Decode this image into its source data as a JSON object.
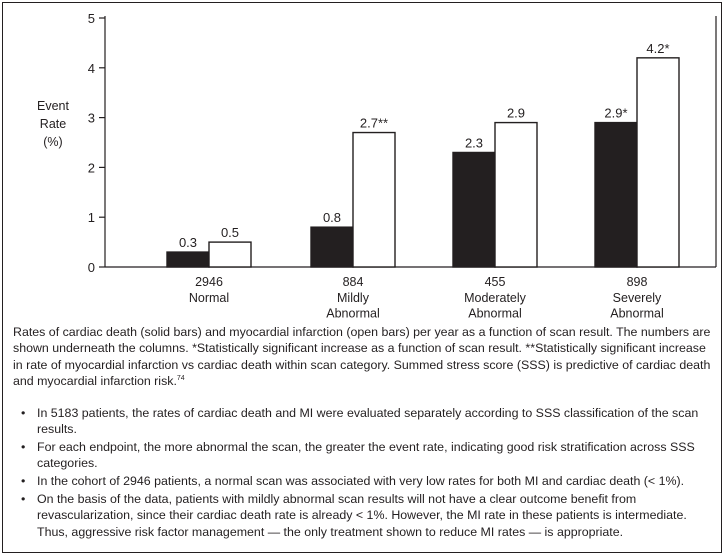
{
  "chart_data": {
    "type": "bar",
    "ylabel_lines": [
      "Event",
      "Rate",
      "(%)"
    ],
    "ylim": [
      0,
      5
    ],
    "yticks": [
      0,
      1,
      2,
      3,
      4,
      5
    ],
    "categories": [
      {
        "count": "2946",
        "lines": [
          "Normal"
        ]
      },
      {
        "count": "884",
        "lines": [
          "Mildly",
          "Abnormal"
        ]
      },
      {
        "count": "455",
        "lines": [
          "Moderately",
          "Abnormal"
        ]
      },
      {
        "count": "898",
        "lines": [
          "Severely",
          "Abnormal"
        ]
      }
    ],
    "series": [
      {
        "fill": "#231f20",
        "values": [
          0.3,
          0.8,
          2.3,
          2.9
        ],
        "labels": [
          "0.3",
          "0.8",
          "2.3",
          "2.9*"
        ]
      },
      {
        "fill": "#ffffff",
        "values": [
          0.5,
          2.7,
          2.9,
          4.2
        ],
        "labels": [
          "0.5",
          "2.7**",
          "2.9",
          "4.2*"
        ]
      }
    ],
    "grid": false
  },
  "caption": {
    "text": "Rates of cardiac death (solid bars) and myocardial infarction (open bars) per year as a function of scan result. The numbers are shown underneath the columns. *Statistically significant increase as a function of scan result. **Statistically significant increase in rate of myocardial infarction vs cardiac death within scan category. Summed stress score (SSS) is predictive of cardiac death and myocardial infarction risk.",
    "ref": "74"
  },
  "bullet_glyph": "•",
  "bullets": [
    "In 5183 patients, the rates of cardiac death and MI were evaluated separately according to SSS classification of the scan results.",
    "For each endpoint, the more abnormal the scan, the greater the event rate, indicating good risk stratification across SSS categories.",
    "In the cohort of 2946 patients, a normal scan was associated with very low rates for both MI and cardiac death (< 1%).",
    "On the basis of the data, patients with mildly abnormal scan results will not have a clear outcome benefit from revascularization, since their cardiac death rate is already < 1%. However, the MI rate in these patients is intermediate. Thus, aggressive risk factor management — the only treatment shown to reduce MI rates — is appropriate."
  ]
}
